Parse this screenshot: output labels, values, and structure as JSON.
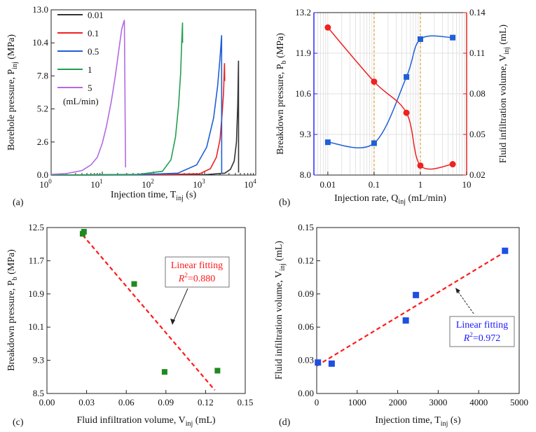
{
  "colors": {
    "black": "#333333",
    "red": "#ee2222",
    "blue": "#1f5fd6",
    "green": "#22a050",
    "purple": "#b36ae2",
    "blueAxis": "#1a1aff",
    "redAxis": "#ee1111",
    "greenAxis": "#1f8f1f",
    "orange": "#e69a1a",
    "fitRed": "#ff1a1a"
  },
  "chart_data": [
    {
      "panel": "(a)",
      "type": "line",
      "xlabel": "Injection time, T",
      "xlabel_sub": "inj",
      "xlabel_unit": " (s)",
      "ylabel": "Borehole pressure, P",
      "ylabel_sub": "inj",
      "ylabel_unit": " (MPa)",
      "xscale": "log",
      "xlim": [
        1,
        10000
      ],
      "ylim": [
        0,
        13.0
      ],
      "xticks": [
        1,
        10,
        100,
        1000,
        10000
      ],
      "xtick_labels": [
        {
          "b": "10",
          "e": "0"
        },
        {
          "b": "10",
          "e": "1"
        },
        {
          "b": "10",
          "e": "2"
        },
        {
          "b": "10",
          "e": "3"
        },
        {
          "b": "10",
          "e": "4"
        }
      ],
      "yticks": [
        "0.0",
        "2.6",
        "5.2",
        "7.8",
        "10.4",
        "13.0"
      ],
      "legend_unit": "(mL/min)",
      "series": [
        {
          "name": "0.01",
          "color": "#333333",
          "points": [
            [
              1,
              0
            ],
            [
              100,
              0.01
            ],
            [
              1000,
              0.03
            ],
            [
              2500,
              0.15
            ],
            [
              3200,
              0.45
            ],
            [
              3800,
              1.1
            ],
            [
              4200,
              2.6
            ],
            [
              4450,
              5.5
            ],
            [
              4600,
              9.0
            ],
            [
              4610,
              0.2
            ]
          ]
        },
        {
          "name": "0.1",
          "color": "#ee2222",
          "points": [
            [
              1,
              0
            ],
            [
              100,
              0.02
            ],
            [
              800,
              0.1
            ],
            [
              1300,
              0.5
            ],
            [
              1700,
              1.4
            ],
            [
              2000,
              2.8
            ],
            [
              2200,
              4.8
            ],
            [
              2350,
              6.5
            ],
            [
              2450,
              8.8
            ],
            [
              2470,
              7.4
            ]
          ]
        },
        {
          "name": "0.5",
          "color": "#1f5fd6",
          "points": [
            [
              1,
              0
            ],
            [
              50,
              0.02
            ],
            [
              300,
              0.15
            ],
            [
              700,
              0.8
            ],
            [
              1100,
              2.2
            ],
            [
              1500,
              4.5
            ],
            [
              1800,
              7.0
            ],
            [
              2000,
              9.2
            ],
            [
              2150,
              11.0
            ],
            [
              2160,
              0.1
            ]
          ]
        },
        {
          "name": "1",
          "color": "#22a050",
          "points": [
            [
              1,
              0
            ],
            [
              50,
              0.05
            ],
            [
              150,
              0.3
            ],
            [
              220,
              1.2
            ],
            [
              270,
              3.0
            ],
            [
              310,
              5.5
            ],
            [
              340,
              8.0
            ],
            [
              355,
              10.2
            ],
            [
              370,
              12.0
            ],
            [
              372,
              10.4
            ]
          ]
        },
        {
          "name": "5",
          "color": "#b36ae2",
          "points": [
            [
              1,
              0.05
            ],
            [
              2,
              0.12
            ],
            [
              4,
              0.35
            ],
            [
              6,
              0.8
            ],
            [
              8,
              1.4
            ],
            [
              10,
              2.5
            ],
            [
              12,
              3.8
            ],
            [
              15,
              5.8
            ],
            [
              18,
              7.8
            ],
            [
              21,
              9.8
            ],
            [
              24,
              11.5
            ],
            [
              27,
              12.2
            ],
            [
              28.5,
              0.6
            ]
          ]
        }
      ]
    },
    {
      "panel": "(b)",
      "type": "line",
      "xlabel": "Injection rate, Q",
      "xlabel_sub": "inj",
      "xlabel_unit": " (mL/min)",
      "ylabel": "Breakdown pressure, P",
      "ylabel_sub": "b",
      "ylabel_unit": " (MPa)",
      "ylabel2": "Fluid infiltration volume, V",
      "ylabel2_sub": "inj",
      "ylabel2_unit": " (mL)",
      "xscale": "log",
      "xlim": [
        0.005,
        10
      ],
      "ylim": [
        8.0,
        13.2
      ],
      "ylim2": [
        0.02,
        0.14
      ],
      "xticks": [
        0.01,
        0.1,
        1,
        10
      ],
      "xtick_labels": [
        "0.01",
        "0.1",
        "1",
        "10"
      ],
      "yticks": [
        "8.0",
        "9.3",
        "10.6",
        "11.9",
        "13.2"
      ],
      "yticks2": [
        "0.02",
        "0.05",
        "0.08",
        "0.11",
        "0.14"
      ],
      "vlines": [
        0.1,
        1
      ],
      "series": [
        {
          "name": "Breakdown pressure",
          "color": "#1f5fd6",
          "axis": "left",
          "marker": "square",
          "x": [
            0.01,
            0.1,
            0.5,
            1,
            5
          ],
          "values": [
            9.05,
            9.02,
            11.14,
            12.35,
            12.4
          ]
        },
        {
          "name": "Fluid infiltration volume",
          "color": "#ee2222",
          "axis": "right",
          "marker": "circle",
          "x": [
            0.01,
            0.1,
            0.5,
            1,
            5
          ],
          "values": [
            0.129,
            0.089,
            0.066,
            0.027,
            0.028
          ]
        }
      ]
    },
    {
      "panel": "(c)",
      "type": "scatter",
      "xlabel": "Fluid infiltration volume, V",
      "xlabel_sub": "inj",
      "xlabel_unit": " (mL)",
      "ylabel": "Breakdown pressure, P",
      "ylabel_sub": "b",
      "ylabel_unit": " (MPa)",
      "xlim": [
        0,
        0.15
      ],
      "ylim": [
        8.5,
        12.5
      ],
      "xticks": [
        "0.00",
        "0.03",
        "0.06",
        "0.09",
        "0.12",
        "0.15"
      ],
      "yticks": [
        "8.5",
        "9.3",
        "10.1",
        "10.9",
        "11.7",
        "12.5"
      ],
      "x": [
        0.027,
        0.028,
        0.066,
        0.089,
        0.129
      ],
      "values": [
        12.35,
        12.4,
        11.14,
        9.02,
        9.05
      ],
      "fit": {
        "x": [
          0.027,
          0.127
        ],
        "y": [
          12.32,
          8.58
        ]
      },
      "annotation": {
        "line1": "Linear fitting",
        "r_label": "R",
        "r_sup": "2",
        "r_value": "=0.880"
      }
    },
    {
      "panel": "(d)",
      "type": "scatter",
      "xlabel": "Injection time, T",
      "xlabel_sub": "inj",
      "xlabel_unit": " (s)",
      "ylabel": "Fluid infiltration volume, V",
      "ylabel_sub": "inj",
      "ylabel_unit": " (mL)",
      "xlim": [
        0,
        5000
      ],
      "ylim": [
        0,
        0.15
      ],
      "xticks": [
        "0",
        "1000",
        "2000",
        "3000",
        "4000",
        "5000"
      ],
      "yticks": [
        "0.00",
        "0.03",
        "0.06",
        "0.09",
        "0.12",
        "0.15"
      ],
      "x": [
        30,
        370,
        2200,
        2450,
        4650
      ],
      "values": [
        0.028,
        0.027,
        0.066,
        0.089,
        0.129
      ],
      "fit": {
        "x": [
          0,
          4650
        ],
        "y": [
          0.025,
          0.128
        ]
      },
      "annotation": {
        "line1": "Linear fitting",
        "r_label": "R",
        "r_sup": "2",
        "r_value": "=0.972"
      }
    }
  ]
}
